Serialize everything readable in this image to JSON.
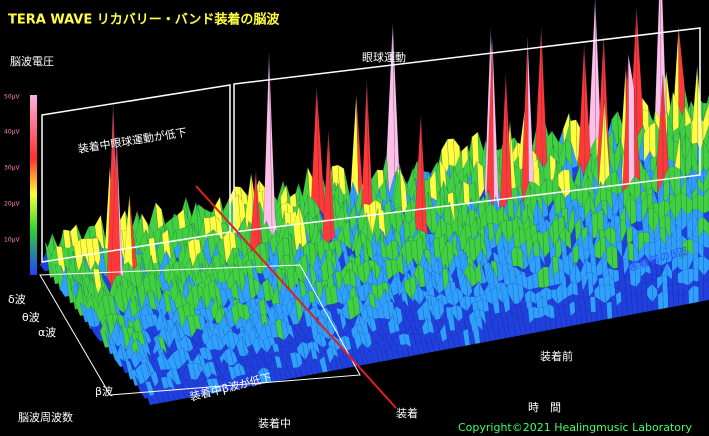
{
  "header": {
    "title": "TERA WAVE リカバリー・バンド装着の脳波"
  },
  "voltage_axis": {
    "label": "脳波電圧",
    "ticks": [
      "50μV",
      "40μV",
      "30μV",
      "20μV",
      "10μV"
    ]
  },
  "annotations": {
    "eye_movement": "眼球運動",
    "eye_movement_reduced": "装着中眼球運動が低下",
    "beta_reduced": "装着中β波が低下",
    "beta_before": "装着前のβ波"
  },
  "frequency_axis": {
    "label": "脳波周波数",
    "bands": [
      "δ波",
      "θ波",
      "α波",
      "β波"
    ]
  },
  "time_axis": {
    "label": "時　間",
    "during": "装着中",
    "before": "装着前",
    "wear_point": "装着"
  },
  "footer": {
    "copyright": "Copyright©2021 Healingmusic Laboratory"
  }
}
